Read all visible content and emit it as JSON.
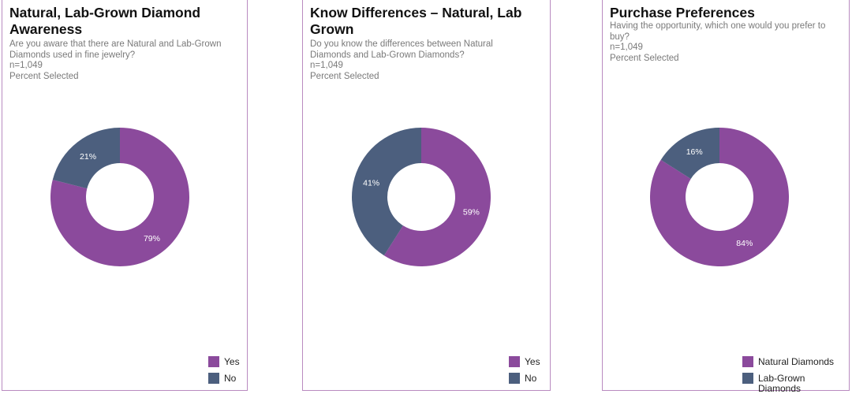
{
  "colors": {
    "purple": "#8b4a9c",
    "slate": "#4c5f7e"
  },
  "panels": [
    {
      "title": "Natural, Lab-Grown Diamond Awareness",
      "question": "Are you aware that there are Natural and Lab-Grown Diamonds used in fine jewelry?",
      "n": "n=1,049",
      "measure": "Percent Selected",
      "legend": [
        "Yes",
        "No"
      ]
    },
    {
      "title": "Know Differences – Natural, Lab Grown",
      "question": "Do you know the differences between Natural Diamonds and Lab-Grown Diamonds?",
      "n": "n=1,049",
      "measure": "Percent Selected",
      "legend": [
        "Yes",
        "No"
      ]
    },
    {
      "title": "Purchase Preferences",
      "question": "Having the opportunity, which one would you prefer to buy?",
      "n": "n=1,049",
      "measure": "Percent Selected",
      "legend": [
        "Natural Diamonds",
        "Lab-Grown Diamonds"
      ]
    }
  ],
  "chart_data": [
    {
      "type": "pie",
      "title": "Natural, Lab-Grown Diamond Awareness",
      "categories": [
        "Yes",
        "No"
      ],
      "values": [
        79,
        21
      ],
      "labels": [
        "79%",
        "21%"
      ]
    },
    {
      "type": "pie",
      "title": "Know Differences – Natural, Lab Grown",
      "categories": [
        "Yes",
        "No"
      ],
      "values": [
        59,
        41
      ],
      "labels": [
        "59%",
        "41%"
      ]
    },
    {
      "type": "pie",
      "title": "Purchase Preferences",
      "categories": [
        "Natural Diamonds",
        "Lab-Grown Diamonds"
      ],
      "values": [
        84,
        16
      ],
      "labels": [
        "84%",
        "16%"
      ]
    }
  ]
}
